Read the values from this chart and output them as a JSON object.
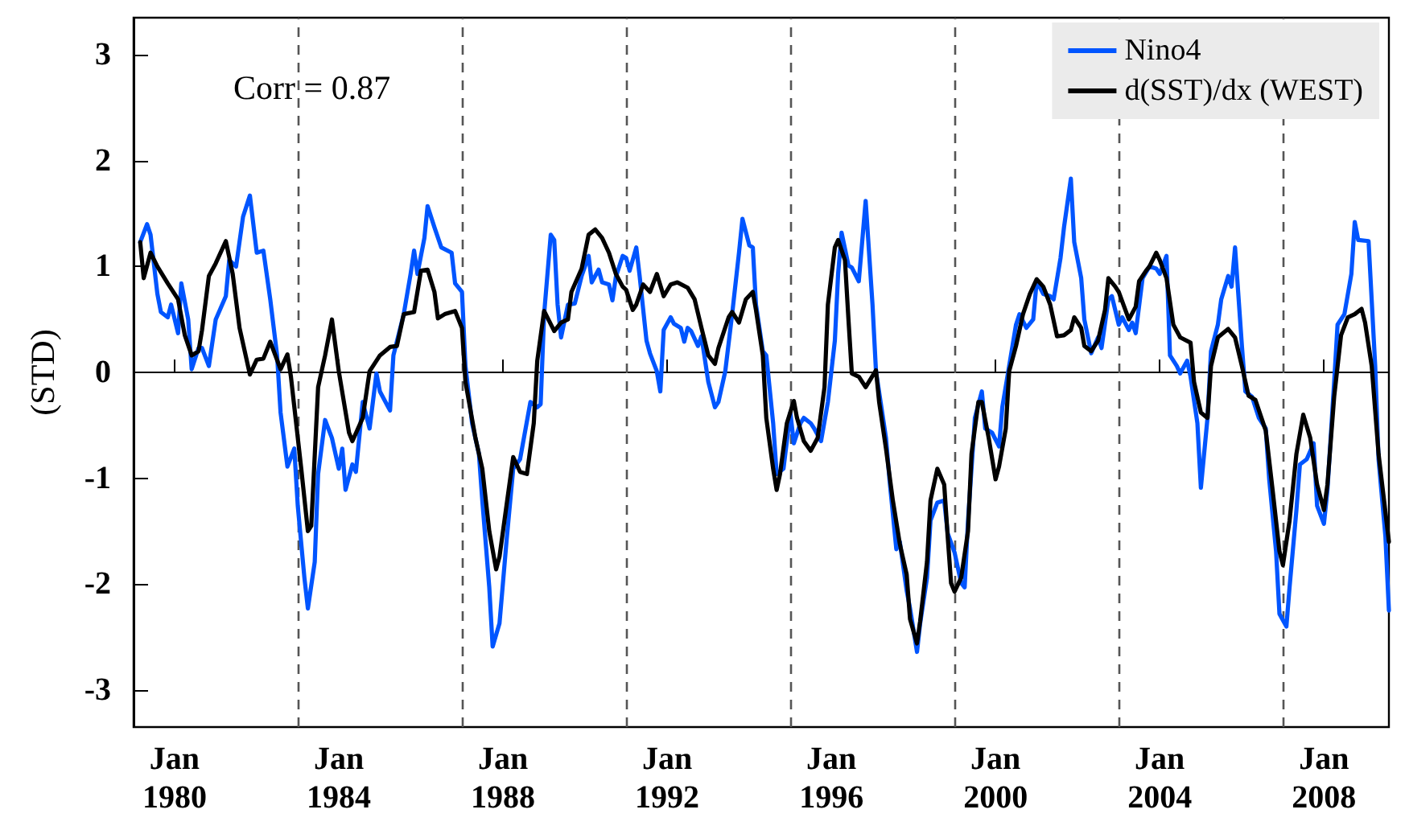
{
  "chart_data": {
    "type": "line",
    "ylabel": "(STD)",
    "annotations": [
      "Corr = 0.87"
    ],
    "xlim": [
      "1979-01",
      "2009-08"
    ],
    "ylim": [
      -3.35,
      3.35
    ],
    "xticks": [
      {
        "value": "1980-01",
        "label": "Jan\n1980"
      },
      {
        "value": "1984-01",
        "label": "Jan\n1984"
      },
      {
        "value": "1988-01",
        "label": "Jan\n1988"
      },
      {
        "value": "1992-01",
        "label": "Jan\n1992"
      },
      {
        "value": "1996-01",
        "label": "Jan\n1996"
      },
      {
        "value": "2000-01",
        "label": "Jan\n2000"
      },
      {
        "value": "2004-01",
        "label": "Jan\n2004"
      },
      {
        "value": "2008-01",
        "label": "Jan\n2008"
      }
    ],
    "yticks": [
      -3,
      -2,
      -1,
      0,
      1,
      2,
      3
    ],
    "grid": false,
    "legend": "top right",
    "marker": "none",
    "ref_lines": [
      {
        "axis": "y",
        "value": 0,
        "color": "#000000",
        "line_style": "solid"
      },
      {
        "axis": "x",
        "value": "1983-01",
        "color": "#555555",
        "line_style": "dashed"
      },
      {
        "axis": "x",
        "value": "1987-01",
        "color": "#555555",
        "line_style": "dashed"
      },
      {
        "axis": "x",
        "value": "1991-01",
        "color": "#555555",
        "line_style": "dashed"
      },
      {
        "axis": "x",
        "value": "1995-01",
        "color": "#555555",
        "line_style": "dashed"
      },
      {
        "axis": "x",
        "value": "1999-01",
        "color": "#555555",
        "line_style": "dashed"
      },
      {
        "axis": "x",
        "value": "2003-01",
        "color": "#555555",
        "line_style": "dashed"
      },
      {
        "axis": "x",
        "value": "2007-01",
        "color": "#555555",
        "line_style": "dashed"
      }
    ],
    "series": [
      {
        "name": "Nino4",
        "color": "#0055ff",
        "x": [
          "1979-03",
          "1979-05",
          "1979-06",
          "1979-08",
          "1979-09",
          "1979-11",
          "1979-12",
          "1980-02",
          "1980-03",
          "1980-05",
          "1980-06",
          "1980-08",
          "1980-09",
          "1980-11",
          "1981-01",
          "1981-04",
          "1981-05",
          "1981-07",
          "1981-09",
          "1981-11",
          "1982-01",
          "1982-03",
          "1982-05",
          "1982-07",
          "1982-08",
          "1982-10",
          "1982-12",
          "1983-01",
          "1983-03",
          "1983-04",
          "1983-06",
          "1983-07",
          "1983-09",
          "1983-11",
          "1984-01",
          "1984-02",
          "1984-03",
          "1984-05",
          "1984-06",
          "1984-08",
          "1984-10",
          "1984-12",
          "1985-01",
          "1985-04",
          "1985-05",
          "1985-08",
          "1985-10",
          "1985-11",
          "1985-12",
          "1986-02",
          "1986-03",
          "1986-05",
          "1986-07",
          "1986-10",
          "1986-11",
          "1987-01",
          "1987-02",
          "1987-04",
          "1987-06",
          "1987-07",
          "1987-09",
          "1987-10",
          "1987-12",
          "1988-02",
          "1988-04",
          "1988-06",
          "1988-09",
          "1988-11",
          "1988-12",
          "1989-01",
          "1989-03",
          "1989-04",
          "1989-05",
          "1989-06",
          "1989-08",
          "1989-10",
          "1989-12",
          "1990-02",
          "1990-03",
          "1990-05",
          "1990-06",
          "1990-08",
          "1990-09",
          "1990-10",
          "1990-12",
          "1991-01",
          "1991-02",
          "1991-04",
          "1991-05",
          "1991-07",
          "1991-08",
          "1991-10",
          "1991-11",
          "1991-12",
          "1992-02",
          "1992-03",
          "1992-05",
          "1992-06",
          "1992-07",
          "1992-08",
          "1992-10",
          "1992-11",
          "1993-01",
          "1993-03",
          "1993-04",
          "1993-06",
          "1993-08",
          "1993-10",
          "1993-11",
          "1994-01",
          "1994-02",
          "1994-03",
          "1994-05",
          "1994-06",
          "1994-08",
          "1994-09",
          "1994-11",
          "1995-01",
          "1995-02",
          "1995-04",
          "1995-05",
          "1995-07",
          "1995-08",
          "1995-10",
          "1995-12",
          "1996-02",
          "1996-03",
          "1996-04",
          "1996-06",
          "1996-07",
          "1996-09",
          "1996-10",
          "1996-11",
          "1997-01",
          "1997-02",
          "1997-05",
          "1997-06",
          "1997-08",
          "1997-09",
          "1997-11",
          "1997-12",
          "1998-02",
          "1998-03",
          "1998-05",
          "1998-06",
          "1998-08",
          "1998-10",
          "1998-11",
          "1999-01",
          "1999-03",
          "1999-04",
          "1999-05",
          "1999-07",
          "1999-09",
          "1999-10",
          "1999-12",
          "2000-02",
          "2000-03",
          "2000-05",
          "2000-07",
          "2000-08",
          "2000-10",
          "2000-12",
          "2001-01",
          "2001-03",
          "2001-05",
          "2001-06",
          "2001-08",
          "2001-09",
          "2001-11",
          "2001-12",
          "2002-02",
          "2002-03",
          "2002-05",
          "2002-07",
          "2002-08",
          "2002-10",
          "2002-11",
          "2003-01",
          "2003-02",
          "2003-04",
          "2003-05",
          "2003-06",
          "2003-08",
          "2003-10",
          "2003-12",
          "2004-01",
          "2004-03",
          "2004-04",
          "2004-06",
          "2004-07",
          "2004-09",
          "2004-10",
          "2004-12",
          "2005-01",
          "2005-03",
          "2005-04",
          "2005-06",
          "2005-07",
          "2005-09",
          "2005-10",
          "2005-11",
          "2006-01",
          "2006-02",
          "2006-04",
          "2006-06",
          "2006-08",
          "2006-09",
          "2006-11",
          "2006-12",
          "2007-02",
          "2007-03",
          "2007-05",
          "2007-06",
          "2007-08",
          "2007-10",
          "2007-11",
          "2008-01",
          "2008-02",
          "2008-04",
          "2008-05",
          "2008-07",
          "2008-09",
          "2008-10",
          "2008-11",
          "2009-02",
          "2009-04",
          "2009-05",
          "2009-07",
          "2009-08"
        ],
        "values": [
          1.23,
          1.4,
          1.3,
          0.74,
          0.57,
          0.52,
          0.64,
          0.37,
          0.84,
          0.5,
          0.03,
          0.23,
          0.23,
          0.06,
          0.5,
          0.72,
          1.06,
          1.0,
          1.47,
          1.67,
          1.13,
          1.15,
          0.69,
          0.16,
          -0.38,
          -0.89,
          -0.72,
          -1.26,
          -1.94,
          -2.23,
          -1.79,
          -0.96,
          -0.45,
          -0.62,
          -0.91,
          -0.72,
          -1.11,
          -0.87,
          -0.94,
          -0.28,
          -0.53,
          -0.01,
          -0.18,
          -0.36,
          0.16,
          0.55,
          0.93,
          1.15,
          0.93,
          1.27,
          1.57,
          1.37,
          1.18,
          1.13,
          0.84,
          0.76,
          0.06,
          -0.48,
          -0.77,
          -1.21,
          -2.03,
          -2.59,
          -2.37,
          -1.6,
          -0.91,
          -0.82,
          -0.28,
          -0.33,
          -0.3,
          0.55,
          1.3,
          1.25,
          0.64,
          0.33,
          0.64,
          0.65,
          0.91,
          1.1,
          0.85,
          0.97,
          0.85,
          0.83,
          0.68,
          0.9,
          1.1,
          1.08,
          0.96,
          1.18,
          0.91,
          0.3,
          0.18,
          0.01,
          -0.18,
          0.4,
          0.52,
          0.46,
          0.42,
          0.29,
          0.42,
          0.39,
          0.25,
          0.34,
          -0.09,
          -0.33,
          -0.28,
          0.01,
          0.55,
          1.13,
          1.45,
          1.2,
          1.18,
          0.64,
          0.2,
          0.16,
          -0.48,
          -0.96,
          -0.91,
          -0.38,
          -0.67,
          -0.48,
          -0.43,
          -0.48,
          -0.53,
          -0.65,
          -0.28,
          0.3,
          0.93,
          1.32,
          1.01,
          0.99,
          0.86,
          1.23,
          1.62,
          0.64,
          0.01,
          -0.62,
          -1.01,
          -1.67,
          -1.6,
          -2.06,
          -2.23,
          -2.64,
          -2.37,
          -1.94,
          -1.4,
          -1.23,
          -1.21,
          -1.52,
          -1.7,
          -1.99,
          -2.03,
          -1.4,
          -0.43,
          -0.18,
          -0.53,
          -0.57,
          -0.7,
          -0.33,
          0.06,
          0.45,
          0.55,
          0.42,
          0.5,
          0.86,
          0.74,
          0.72,
          0.69,
          1.08,
          1.37,
          1.83,
          1.23,
          0.89,
          0.5,
          0.18,
          0.33,
          0.23,
          0.69,
          0.72,
          0.45,
          0.52,
          0.4,
          0.47,
          0.37,
          0.89,
          1.0,
          0.98,
          0.93,
          1.1,
          0.16,
          0.06,
          -0.01,
          0.11,
          -0.04,
          -0.48,
          -1.09,
          -0.43,
          0.2,
          0.45,
          0.69,
          0.91,
          0.81,
          1.18,
          0.25,
          -0.18,
          -0.23,
          -0.43,
          -0.53,
          -1.01,
          -1.69,
          -2.28,
          -2.4,
          -2.03,
          -1.3,
          -0.87,
          -0.82,
          -0.67,
          -1.26,
          -1.43,
          -1.11,
          -0.09,
          0.45,
          0.55,
          0.93,
          1.42,
          1.25,
          1.24,
          0.06,
          -0.82,
          -1.55,
          -2.25
        ]
      },
      {
        "name": "d(SST)/dx (WEST)",
        "color": "#000000",
        "x": [
          "1979-03",
          "1979-04",
          "1979-06",
          "1979-08",
          "1979-11",
          "1980-02",
          "1980-04",
          "1980-06",
          "1980-08",
          "1980-09",
          "1980-11",
          "1981-01",
          "1981-04",
          "1981-06",
          "1981-08",
          "1981-11",
          "1982-01",
          "1982-03",
          "1982-05",
          "1982-08",
          "1982-10",
          "1982-11",
          "1983-02",
          "1983-04",
          "1983-05",
          "1983-07",
          "1983-09",
          "1983-11",
          "1984-01",
          "1984-04",
          "1984-05",
          "1984-08",
          "1984-10",
          "1985-01",
          "1985-04",
          "1985-06",
          "1985-08",
          "1985-11",
          "1986-01",
          "1986-03",
          "1986-05",
          "1986-06",
          "1986-08",
          "1986-11",
          "1987-01",
          "1987-02",
          "1987-05",
          "1987-07",
          "1987-09",
          "1987-11",
          "1987-12",
          "1988-02",
          "1988-04",
          "1988-06",
          "1988-08",
          "1988-10",
          "1988-11",
          "1989-01",
          "1989-04",
          "1989-06",
          "1989-08",
          "1989-09",
          "1989-12",
          "1990-02",
          "1990-04",
          "1990-06",
          "1990-08",
          "1990-10",
          "1990-12",
          "1991-01",
          "1991-03",
          "1991-04",
          "1991-06",
          "1991-08",
          "1991-10",
          "1991-12",
          "1992-02",
          "1992-04",
          "1992-07",
          "1992-09",
          "1992-11",
          "1993-01",
          "1993-03",
          "1993-04",
          "1993-07",
          "1993-08",
          "1993-10",
          "1993-12",
          "1994-02",
          "1994-03",
          "1994-05",
          "1994-06",
          "1994-08",
          "1994-09",
          "1994-10",
          "1994-12",
          "1995-02",
          "1995-03",
          "1995-05",
          "1995-07",
          "1995-09",
          "1995-11",
          "1995-12",
          "1996-02",
          "1996-03",
          "1996-05",
          "1996-06",
          "1996-07",
          "1996-09",
          "1996-11",
          "1997-02",
          "1997-03",
          "1997-05",
          "1997-07",
          "1997-09",
          "1997-11",
          "1997-12",
          "1998-02",
          "1998-03",
          "1998-05",
          "1998-06",
          "1998-08",
          "1998-10",
          "1998-11",
          "1998-12",
          "1999-01",
          "1999-03",
          "1999-05",
          "1999-06",
          "1999-08",
          "1999-09",
          "1999-11",
          "2000-01",
          "2000-02",
          "2000-04",
          "2000-05",
          "2000-07",
          "2000-09",
          "2000-11",
          "2001-01",
          "2001-03",
          "2001-05",
          "2001-07",
          "2001-09",
          "2001-11",
          "2001-12",
          "2002-02",
          "2002-03",
          "2002-05",
          "2002-07",
          "2002-09",
          "2002-10",
          "2002-12",
          "2003-01",
          "2003-03",
          "2003-04",
          "2003-06",
          "2003-07",
          "2003-09",
          "2003-10",
          "2003-12",
          "2004-01",
          "2004-03",
          "2004-05",
          "2004-07",
          "2004-10",
          "2004-11",
          "2005-01",
          "2005-03",
          "2005-04",
          "2005-06",
          "2005-09",
          "2005-11",
          "2006-01",
          "2006-03",
          "2006-05",
          "2006-08",
          "2006-10",
          "2006-12",
          "2007-01",
          "2007-03",
          "2007-05",
          "2007-07",
          "2007-09",
          "2007-11",
          "2008-01",
          "2008-02",
          "2008-04",
          "2008-06",
          "2008-08",
          "2008-10",
          "2008-12",
          "2009-01",
          "2009-03",
          "2009-05",
          "2009-08"
        ],
        "values": [
          1.23,
          0.89,
          1.13,
          1.0,
          0.84,
          0.69,
          0.35,
          0.16,
          0.2,
          0.4,
          0.91,
          1.03,
          1.24,
          0.93,
          0.42,
          -0.02,
          0.12,
          0.13,
          0.29,
          0.03,
          0.17,
          -0.04,
          -0.91,
          -1.5,
          -1.45,
          -0.14,
          0.16,
          0.5,
          0.01,
          -0.57,
          -0.65,
          -0.43,
          0.01,
          0.16,
          0.24,
          0.25,
          0.55,
          0.57,
          0.96,
          0.97,
          0.76,
          0.51,
          0.55,
          0.58,
          0.42,
          -0.09,
          -0.62,
          -0.91,
          -1.5,
          -1.86,
          -1.74,
          -1.26,
          -0.8,
          -0.94,
          -0.96,
          -0.48,
          0.11,
          0.58,
          0.39,
          0.47,
          0.5,
          0.76,
          0.98,
          1.3,
          1.35,
          1.27,
          1.13,
          0.93,
          0.81,
          0.78,
          0.59,
          0.64,
          0.83,
          0.76,
          0.93,
          0.72,
          0.83,
          0.85,
          0.8,
          0.69,
          0.42,
          0.16,
          0.08,
          0.23,
          0.52,
          0.57,
          0.47,
          0.69,
          0.76,
          0.59,
          0.16,
          -0.43,
          -0.91,
          -1.11,
          -0.96,
          -0.48,
          -0.27,
          -0.43,
          -0.65,
          -0.74,
          -0.62,
          -0.14,
          0.64,
          1.18,
          1.25,
          1.06,
          0.5,
          -0.01,
          -0.04,
          -0.14,
          0.02,
          -0.28,
          -0.72,
          -1.21,
          -1.62,
          -1.91,
          -2.33,
          -2.56,
          -2.35,
          -1.79,
          -1.21,
          -0.91,
          -1.06,
          -1.55,
          -1.99,
          -2.07,
          -1.94,
          -1.5,
          -0.77,
          -0.28,
          -0.28,
          -0.62,
          -1.01,
          -0.89,
          -0.53,
          0.01,
          0.25,
          0.55,
          0.74,
          0.88,
          0.81,
          0.64,
          0.34,
          0.35,
          0.4,
          0.52,
          0.42,
          0.25,
          0.2,
          0.3,
          0.59,
          0.89,
          0.81,
          0.76,
          0.59,
          0.5,
          0.62,
          0.86,
          0.96,
          1.0,
          1.13,
          1.06,
          0.89,
          0.45,
          0.33,
          0.28,
          -0.09,
          -0.38,
          -0.43,
          0.06,
          0.33,
          0.41,
          0.33,
          0.06,
          -0.22,
          -0.26,
          -0.55,
          -1.11,
          -1.69,
          -1.82,
          -1.4,
          -0.77,
          -0.4,
          -0.62,
          -1.06,
          -1.3,
          -1.06,
          -0.23,
          0.35,
          0.52,
          0.55,
          0.6,
          0.47,
          0.06,
          -0.77,
          -1.6
        ]
      }
    ]
  }
}
